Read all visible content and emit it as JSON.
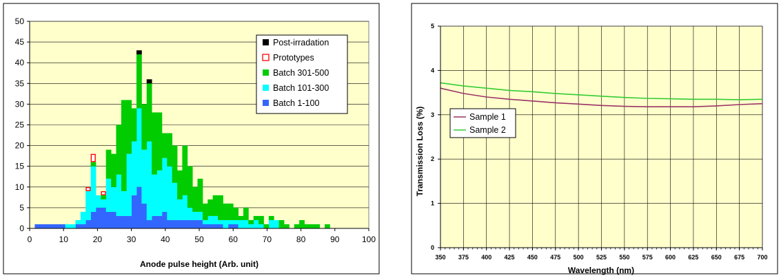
{
  "colors": {
    "panel_bg": "#ffffff",
    "plot_bg": "#ffffcc",
    "frame": "#000000",
    "batch_1_100": "#3366ff",
    "batch_101_300": "#00ffff",
    "batch_301_500": "#00cc00",
    "prototypes": "#ff0000",
    "post_irradation": "#000000",
    "sample_1": "#993366",
    "sample_2": "#33cc33"
  },
  "chart_data": [
    {
      "type": "bar",
      "stacked": true,
      "xlabel": "Anode pulse height (Arb. unit)",
      "ylabel": "",
      "xlim": [
        0,
        100
      ],
      "ylim": [
        0,
        50
      ],
      "x_ticks": [
        0,
        10,
        20,
        30,
        40,
        50,
        60,
        70,
        80,
        90,
        100
      ],
      "y_ticks": [
        0,
        5,
        10,
        15,
        20,
        25,
        30,
        35,
        40,
        45,
        50
      ],
      "bin_width": 1.5,
      "bin_starts": [
        1.5,
        3,
        4.5,
        6,
        7.5,
        9,
        10.5,
        12,
        13.5,
        15,
        16.5,
        18,
        19.5,
        21,
        22.5,
        24,
        25.5,
        27,
        28.5,
        30,
        31.5,
        33,
        34.5,
        36,
        37.5,
        39,
        40.5,
        42,
        43.5,
        45,
        46.5,
        48,
        49.5,
        51,
        52.5,
        54,
        55.5,
        57,
        58.5,
        60,
        61.5,
        63,
        64.5,
        66,
        67.5,
        69,
        70.5,
        72,
        73.5,
        75,
        76.5,
        78,
        79.5,
        81,
        82.5,
        84,
        85.5,
        87,
        88.5
      ],
      "series": [
        {
          "name": "Batch    1-100",
          "values": [
            1,
            1,
            1,
            1,
            1,
            1,
            0,
            0,
            1,
            1,
            2,
            4,
            5,
            5,
            4,
            4,
            3,
            3,
            3,
            8,
            10,
            6,
            2,
            3,
            3,
            4,
            2,
            2,
            2,
            2,
            2,
            2,
            2,
            1,
            1,
            1,
            1,
            0,
            1,
            1,
            0,
            0,
            0,
            0,
            0,
            0,
            0,
            0,
            0,
            0,
            0,
            0,
            0,
            0,
            0,
            0,
            0,
            0,
            0
          ]
        },
        {
          "name": "Batch  101-300",
          "values": [
            0,
            0,
            0,
            0,
            0,
            0,
            1,
            1,
            1,
            3,
            7,
            11,
            3,
            2,
            8,
            6,
            10,
            6,
            15,
            13,
            19,
            13,
            19,
            10,
            11,
            13,
            13,
            9,
            5,
            6,
            3,
            2,
            2,
            1,
            2,
            2,
            1,
            2,
            1,
            1,
            2,
            2,
            1,
            2,
            1,
            0,
            2,
            2,
            0,
            0,
            0,
            0,
            0,
            0,
            0,
            0,
            0,
            0,
            0
          ]
        },
        {
          "name": "Batch  301-500",
          "values": [
            0,
            0,
            0,
            0,
            0,
            0,
            0,
            0,
            0,
            0,
            0,
            1,
            0,
            1,
            7,
            8,
            12,
            22,
            13,
            8,
            13,
            11,
            14,
            15,
            14,
            6,
            8,
            9,
            7,
            12,
            10,
            6,
            8,
            4,
            4,
            5,
            6,
            4,
            4,
            3,
            1,
            3,
            1,
            1,
            2,
            1,
            1,
            0,
            2,
            1,
            0,
            1,
            2,
            1,
            1,
            1,
            0,
            1,
            0
          ]
        },
        {
          "name": "Prototypes",
          "values": [
            0,
            0,
            0,
            0,
            0,
            0,
            0,
            0,
            0,
            0,
            1,
            2,
            0,
            1,
            0,
            0,
            0,
            0,
            0,
            0,
            0,
            0,
            0,
            0,
            0,
            0,
            0,
            0,
            0,
            0,
            0,
            0,
            0,
            0,
            0,
            0,
            0,
            0,
            0,
            0,
            0,
            0,
            0,
            0,
            0,
            0,
            0,
            0,
            0,
            0,
            0,
            0,
            0,
            0,
            0,
            0,
            0,
            0,
            0
          ]
        },
        {
          "name": "Post-irradation",
          "values": [
            0,
            0,
            0,
            0,
            0,
            0,
            0,
            0,
            0,
            0,
            0,
            0,
            0,
            0,
            0,
            0,
            0,
            0,
            0,
            0,
            1,
            0,
            1,
            0,
            0,
            0,
            0,
            0,
            0,
            0,
            0,
            0,
            0,
            0,
            0,
            0,
            0,
            0,
            0,
            0,
            0,
            0,
            0,
            0,
            0,
            0,
            0,
            0,
            0,
            0,
            0,
            0,
            0,
            0,
            0,
            0,
            0,
            0,
            0
          ]
        }
      ],
      "legend_order": [
        "Post-irradation",
        "Prototypes",
        "Batch  301-500",
        "Batch  101-300",
        "Batch    1-100"
      ],
      "legend_position": "top-right",
      "grid": "horizontal"
    },
    {
      "type": "line",
      "xlabel": "Wavelength (nm)",
      "ylabel": "Transmission Loss (%)",
      "xlim": [
        350,
        700
      ],
      "ylim": [
        0,
        5
      ],
      "x_ticks": [
        350,
        375,
        400,
        425,
        450,
        475,
        500,
        525,
        550,
        575,
        600,
        625,
        650,
        675,
        700
      ],
      "y_ticks": [
        0,
        1,
        2,
        3,
        4,
        5
      ],
      "x": [
        350,
        375,
        400,
        425,
        450,
        475,
        500,
        525,
        550,
        575,
        600,
        625,
        650,
        675,
        700
      ],
      "series": [
        {
          "name": "Sample 1",
          "values": [
            3.6,
            3.48,
            3.4,
            3.35,
            3.31,
            3.27,
            3.24,
            3.21,
            3.19,
            3.18,
            3.18,
            3.18,
            3.2,
            3.23,
            3.25
          ]
        },
        {
          "name": "Sample 2",
          "values": [
            3.72,
            3.65,
            3.6,
            3.55,
            3.52,
            3.48,
            3.45,
            3.42,
            3.39,
            3.37,
            3.36,
            3.35,
            3.35,
            3.34,
            3.35
          ]
        }
      ],
      "legend_position": "left",
      "grid": "both"
    }
  ]
}
